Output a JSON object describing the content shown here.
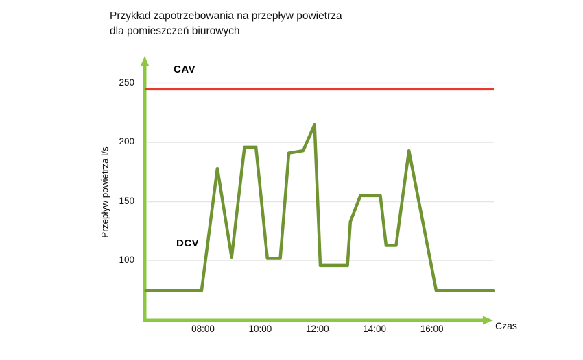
{
  "title": {
    "line1": "Przykład zapotrzebowania na przepływ powietrza",
    "line2": "dla pomieszczeń biurowych"
  },
  "chart_data": {
    "type": "line",
    "title": "Przykład zapotrzebowania na przepływ powietrza dla pomieszczeń biurowych",
    "xlabel": "Czas",
    "ylabel": "Przepływ powietrza l/s",
    "grid": "horizontal-gridlines-on",
    "legend": "inline-labels-near-series",
    "x_tick_labels": [
      "08:00",
      "10:00",
      "12:00",
      "14:00",
      "16:00"
    ],
    "x_tick_hours": [
      8,
      10,
      12,
      14,
      16
    ],
    "y_tick_labels": [
      "100",
      "150",
      "200",
      "250"
    ],
    "y_tick_values": [
      100,
      150,
      200,
      250
    ],
    "x_range_hours": [
      6.0,
      18.2
    ],
    "ylim": [
      50,
      270
    ],
    "series": [
      {
        "name": "CAV",
        "type": "constant-line",
        "value": 245,
        "color": "#e8392b"
      },
      {
        "name": "DCV",
        "type": "line",
        "color": "#6f9431",
        "points_hour_flow": [
          [
            6.0,
            75
          ],
          [
            7.95,
            75
          ],
          [
            8.5,
            178
          ],
          [
            9.0,
            103
          ],
          [
            9.45,
            196
          ],
          [
            9.85,
            196
          ],
          [
            10.25,
            102
          ],
          [
            10.7,
            102
          ],
          [
            11.0,
            191
          ],
          [
            11.5,
            193
          ],
          [
            11.9,
            215
          ],
          [
            12.1,
            96
          ],
          [
            13.05,
            96
          ],
          [
            13.15,
            133
          ],
          [
            13.5,
            155
          ],
          [
            14.2,
            155
          ],
          [
            14.4,
            113
          ],
          [
            14.75,
            113
          ],
          [
            15.2,
            193
          ],
          [
            16.15,
            75
          ],
          [
            18.15,
            75
          ]
        ]
      }
    ],
    "colors": {
      "axis": "#8dc63f",
      "grid": "#e4e4e4",
      "text": "#111111",
      "cav_red": "#e8392b",
      "dcv_green": "#6f9431"
    }
  }
}
